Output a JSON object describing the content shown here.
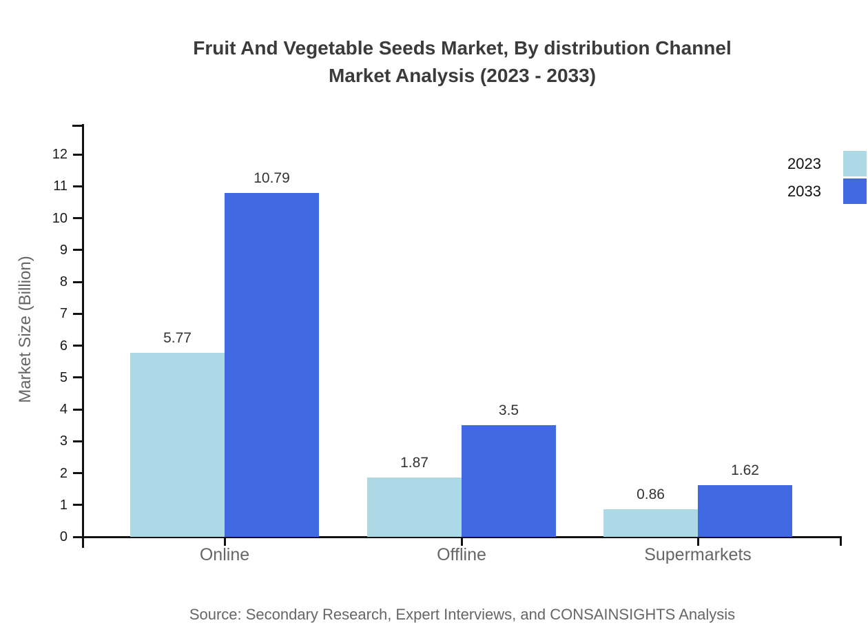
{
  "title": {
    "line1": "Fruit And Vegetable Seeds Market, By distribution Channel",
    "line2": "Market Analysis (2023 - 2033)"
  },
  "source": "Source: Secondary Research, Expert Interviews, and CONSAINSIGHTS Analysis",
  "colors": {
    "series_2023": "#ADD8E6",
    "series_2033": "#4169E1",
    "axis": "#111111",
    "title_text": "#3b3b3b",
    "gray_label": "#666666",
    "value_label": "#333333"
  },
  "chart_data": {
    "type": "bar",
    "categories": [
      "Online",
      "Offline",
      "Supermarkets"
    ],
    "series": [
      {
        "name": "2023",
        "color": "#ADD8E6",
        "values": [
          5.77,
          1.87,
          0.86
        ]
      },
      {
        "name": "2033",
        "color": "#4169E1",
        "values": [
          10.79,
          3.5,
          1.62
        ]
      }
    ],
    "title": "Fruit And Vegetable Seeds Market, By distribution Channel Market Analysis (2023 - 2033)",
    "xlabel": "",
    "ylabel": "Market Size (Billion)",
    "ylim": [
      0,
      12
    ],
    "ytick_step": 1,
    "grid": false,
    "legend_position": "top-right",
    "value_labels_shown": true
  }
}
